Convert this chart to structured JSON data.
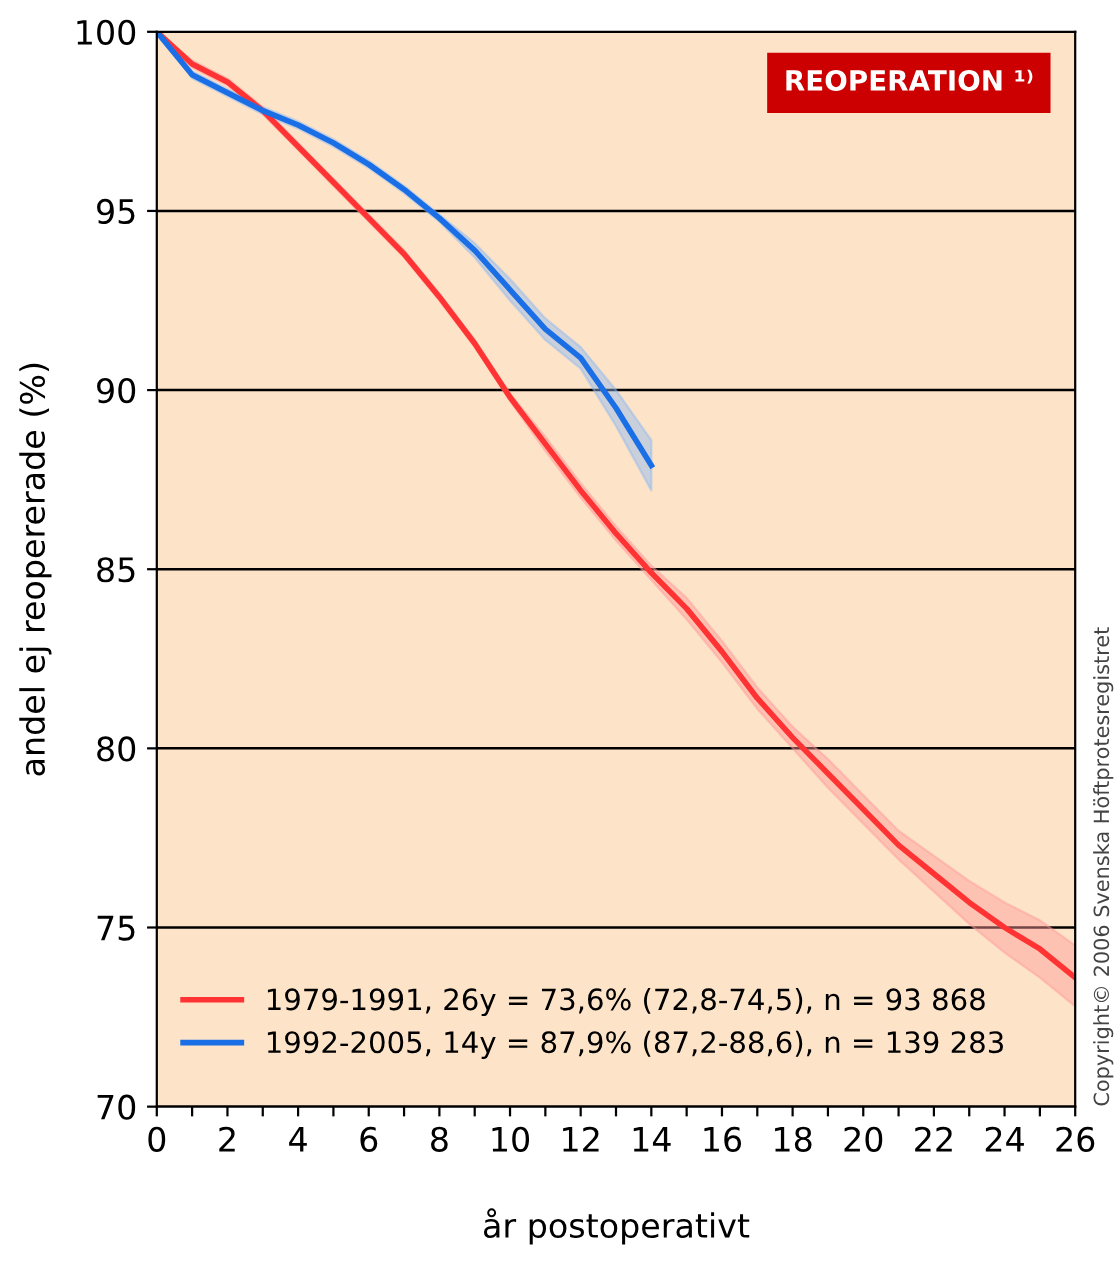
{
  "chart_data": {
    "type": "line",
    "title": "REOPERATION ¹⁾",
    "xlabel": "år postoperativt",
    "ylabel": "andel ej reopererade (%)",
    "annotations": [
      "Copyright© 2006 Svenska Höftprotesregistret"
    ],
    "xlim": [
      0,
      26
    ],
    "ylim": [
      70,
      100
    ],
    "xticks": [
      0,
      {
        "value": 1,
        "label": null
      },
      2,
      {
        "value": 3,
        "label": null
      },
      4,
      {
        "value": 5,
        "label": null
      },
      6,
      {
        "value": 7,
        "label": null
      },
      8,
      {
        "value": 9,
        "label": null
      },
      10,
      {
        "value": 11,
        "label": null
      },
      12,
      {
        "value": 13,
        "label": null
      },
      14,
      {
        "value": 15,
        "label": null
      },
      16,
      {
        "value": 17,
        "label": null
      },
      18,
      {
        "value": 19,
        "label": null
      },
      20,
      {
        "value": 21,
        "label": null
      },
      22,
      {
        "value": 23,
        "label": null
      },
      24,
      {
        "value": 25,
        "label": null
      },
      26
    ],
    "yticks": [
      70,
      75,
      80,
      85,
      90,
      95,
      100
    ],
    "grid": "y",
    "legend": "bottom left",
    "marker": "none",
    "line_style": "solid",
    "series": [
      {
        "name": "1979-1991, 26y = 73,6% (72,8-74,5), n = 93 868",
        "color": "#ff3333",
        "x": [
          0,
          1,
          2,
          3,
          4,
          5,
          6,
          7,
          8,
          9,
          10,
          11,
          12,
          13,
          14,
          15,
          16,
          17,
          18,
          19,
          20,
          21,
          22,
          23,
          24,
          25,
          26
        ],
        "values": [
          100,
          99.1,
          98.6,
          97.8,
          96.8,
          95.8,
          94.8,
          93.8,
          92.6,
          91.3,
          89.8,
          88.5,
          87.2,
          86.0,
          84.9,
          83.9,
          82.7,
          81.4,
          80.3,
          79.3,
          78.3,
          77.3,
          76.5,
          75.7,
          75.0,
          74.4,
          73.6
        ],
        "lower": [
          100,
          99.0,
          98.5,
          97.7,
          96.7,
          95.7,
          94.7,
          93.7,
          92.5,
          91.2,
          89.7,
          88.3,
          87.0,
          85.8,
          84.7,
          83.6,
          82.4,
          81.1,
          80.0,
          78.9,
          77.9,
          76.9,
          76.0,
          75.1,
          74.3,
          73.6,
          72.8
        ],
        "upper": [
          100,
          99.2,
          98.7,
          97.9,
          96.9,
          95.9,
          94.9,
          93.9,
          92.7,
          91.4,
          89.9,
          88.7,
          87.4,
          86.2,
          85.1,
          84.2,
          83.0,
          81.7,
          80.6,
          79.7,
          78.7,
          77.7,
          77.0,
          76.3,
          75.7,
          75.2,
          74.5
        ]
      },
      {
        "name": "1992-2005, 14y = 87,9% (87,2-88,6), n = 139 283",
        "color": "#1a6fe6",
        "x": [
          0,
          1,
          2,
          3,
          4,
          5,
          6,
          7,
          8,
          9,
          10,
          11,
          12,
          13,
          14
        ],
        "values": [
          100,
          98.8,
          98.3,
          97.8,
          97.4,
          96.9,
          96.3,
          95.6,
          94.8,
          93.9,
          92.8,
          91.7,
          90.9,
          89.5,
          87.9
        ],
        "lower": [
          100,
          98.7,
          98.2,
          97.7,
          97.3,
          96.8,
          96.2,
          95.5,
          94.7,
          93.7,
          92.5,
          91.4,
          90.6,
          89.0,
          87.2
        ],
        "upper": [
          100,
          98.9,
          98.4,
          97.9,
          97.5,
          97.0,
          96.4,
          95.7,
          94.9,
          94.1,
          93.1,
          92.0,
          91.2,
          90.0,
          88.6
        ]
      }
    ]
  }
}
